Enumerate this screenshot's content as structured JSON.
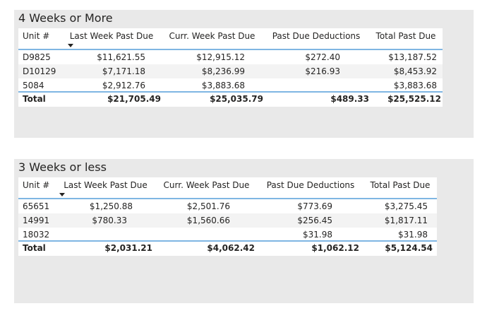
{
  "visuals": [
    {
      "title": "4 Weeks or More",
      "headers": {
        "unit": "Unit #",
        "last_week": "Last Week Past Due",
        "curr_week": "Curr. Week Past Due",
        "deductions": "Past Due Deductions",
        "total": "Total Past Due"
      },
      "sort_column": "last_week",
      "rows": [
        {
          "unit": "D9825",
          "last_week": "$11,621.55",
          "curr_week": "$12,915.12",
          "deductions": "$272.40",
          "total": "$13,187.52"
        },
        {
          "unit": "D10129",
          "last_week": "$7,171.18",
          "curr_week": "$8,236.99",
          "deductions": "$216.93",
          "total": "$8,453.92"
        },
        {
          "unit": "5084",
          "last_week": "$2,912.76",
          "curr_week": "$3,883.68",
          "deductions": "",
          "total": "$3,883.68"
        }
      ],
      "totals": {
        "label": "Total",
        "last_week": "$21,705.49",
        "curr_week": "$25,035.79",
        "deductions": "$489.33",
        "total": "$25,525.12"
      }
    },
    {
      "title": "3 Weeks or less",
      "headers": {
        "unit": "Unit #",
        "last_week": "Last Week Past Due",
        "curr_week": "Curr. Week Past Due",
        "deductions": "Past Due Deductions",
        "total": "Total Past Due"
      },
      "sort_column": "last_week",
      "rows": [
        {
          "unit": "65651",
          "last_week": "$1,250.88",
          "curr_week": "$2,501.76",
          "deductions": "$773.69",
          "total": "$3,275.45"
        },
        {
          "unit": "14991",
          "last_week": "$780.33",
          "curr_week": "$1,560.66",
          "deductions": "$256.45",
          "total": "$1,817.11"
        },
        {
          "unit": "18032",
          "last_week": "",
          "curr_week": "",
          "deductions": "$31.98",
          "total": "$31.98"
        }
      ],
      "totals": {
        "label": "Total",
        "last_week": "$2,031.21",
        "curr_week": "$4,062.42",
        "deductions": "$1,062.12",
        "total": "$5,124.54"
      }
    }
  ],
  "colors": {
    "visual_background": "#e9e9e9",
    "header_rule": "#7fb6e3",
    "text": "#252423"
  }
}
